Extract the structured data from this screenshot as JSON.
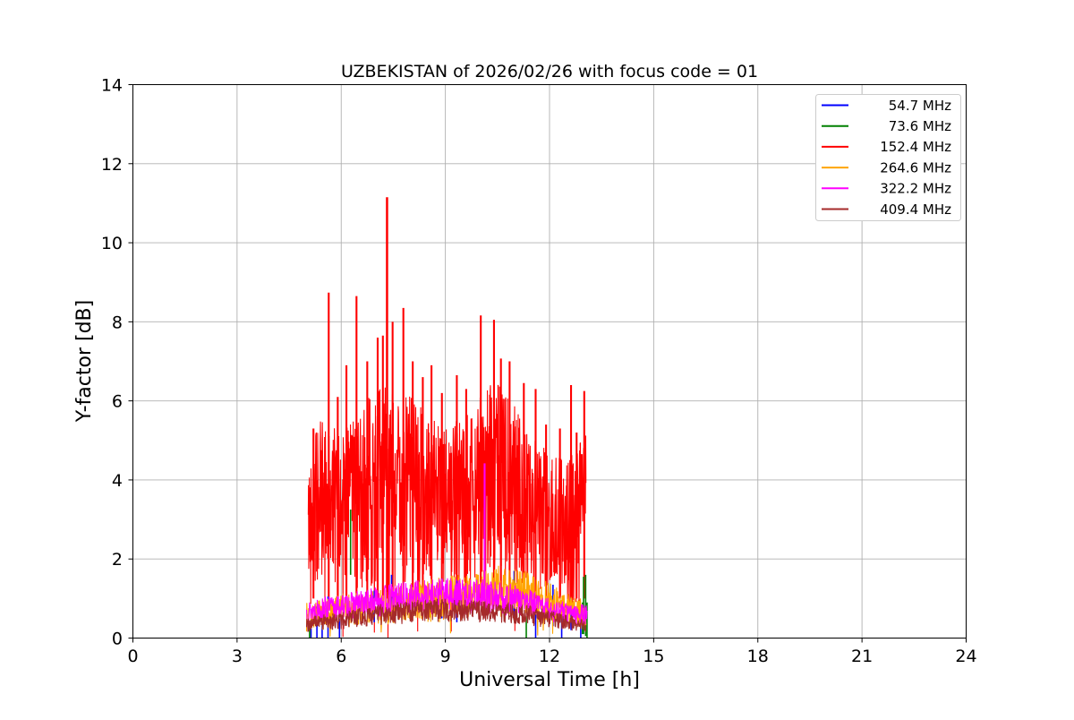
{
  "chart_data": {
    "type": "line",
    "title": "UZBEKISTAN of 2026/02/26 with focus code = 01",
    "xlabel": "Universal Time [h]",
    "ylabel": "Y-factor [dB]",
    "xlim": [
      0,
      24
    ],
    "ylim": [
      0,
      14
    ],
    "xticks": [
      0,
      3,
      6,
      9,
      12,
      15,
      18,
      21,
      24
    ],
    "yticks": [
      0,
      2,
      4,
      6,
      8,
      10,
      12,
      14
    ],
    "grid": true,
    "grid_color": "#b0b0b0",
    "frame_color": "#000000",
    "legend": {
      "position": "upper right"
    },
    "data_time_range_h": [
      5.05,
      13.08
    ],
    "render_order": [
      2,
      0,
      1,
      3,
      4,
      5
    ],
    "series": [
      {
        "name": "54.7 MHz",
        "color": "#0000ff",
        "style": "spikes",
        "spikes": [
          [
            5.13,
            0.45,
            0
          ],
          [
            5.3,
            0.8,
            0
          ],
          [
            5.45,
            0.35,
            0
          ],
          [
            5.62,
            1.05,
            0
          ],
          [
            5.95,
            0.5,
            0
          ],
          [
            6.95,
            1.2,
            0.4
          ],
          [
            7.45,
            1.6,
            0.6
          ],
          [
            8.9,
            1.5,
            0.5
          ],
          [
            9.33,
            1.45,
            0.4
          ],
          [
            10.98,
            1.7,
            0.5
          ],
          [
            11.6,
            0.6,
            0
          ],
          [
            12.1,
            1.35,
            0.3
          ],
          [
            12.35,
            0.6,
            0
          ],
          [
            12.62,
            1.0,
            0.2
          ],
          [
            12.9,
            0.5,
            0
          ]
        ]
      },
      {
        "name": "73.6 MHz",
        "color": "#008000",
        "style": "spikes",
        "spikes": [
          [
            5.09,
            0.4,
            0
          ],
          [
            6.27,
            3.25,
            1.6
          ],
          [
            11.33,
            0.55,
            0
          ],
          [
            12.95,
            0.9,
            0.1
          ],
          [
            12.98,
            1.55,
            0.1
          ],
          [
            13.04,
            1.6,
            0.05
          ],
          [
            13.08,
            0.9,
            0
          ]
        ]
      },
      {
        "name": "152.4 MHz",
        "color": "#ff0000",
        "style": "noise-band",
        "seed": 42,
        "dt": 0.008,
        "bias": 0.75,
        "drop_prob": 0.005,
        "time_range": [
          5.05,
          13.05
        ],
        "envelope": [
          [
            5.05,
            0.8,
            4.2
          ],
          [
            5.2,
            0.8,
            5.3
          ],
          [
            5.5,
            0.8,
            5.6
          ],
          [
            6.0,
            0.8,
            5.2
          ],
          [
            6.5,
            0.9,
            5.8
          ],
          [
            7.0,
            0.9,
            6.3
          ],
          [
            7.5,
            1.0,
            6.4
          ],
          [
            8.0,
            1.0,
            6.1
          ],
          [
            8.5,
            1.0,
            5.7
          ],
          [
            9.0,
            1.0,
            5.3
          ],
          [
            9.5,
            1.0,
            5.6
          ],
          [
            10.0,
            1.1,
            6.1
          ],
          [
            10.5,
            1.1,
            6.6
          ],
          [
            11.0,
            1.0,
            5.9
          ],
          [
            11.5,
            0.9,
            5.1
          ],
          [
            12.0,
            0.8,
            4.7
          ],
          [
            12.5,
            0.8,
            4.5
          ],
          [
            13.05,
            0.8,
            5.2
          ]
        ],
        "peaks": [
          [
            5.2,
            5.3
          ],
          [
            5.64,
            8.74
          ],
          [
            5.9,
            6.1
          ],
          [
            6.15,
            6.9
          ],
          [
            6.44,
            8.65
          ],
          [
            6.75,
            7.0
          ],
          [
            7.05,
            7.6
          ],
          [
            7.2,
            7.65
          ],
          [
            7.32,
            11.15
          ],
          [
            7.48,
            8.0
          ],
          [
            7.79,
            8.35
          ],
          [
            8.06,
            7.0
          ],
          [
            8.35,
            6.6
          ],
          [
            8.6,
            6.9
          ],
          [
            8.9,
            6.2
          ],
          [
            9.33,
            6.65
          ],
          [
            9.6,
            6.3
          ],
          [
            10.02,
            8.16
          ],
          [
            10.4,
            8.05
          ],
          [
            10.6,
            7.07
          ],
          [
            10.85,
            7.0
          ],
          [
            11.26,
            6.45
          ],
          [
            11.6,
            6.3
          ],
          [
            11.9,
            5.4
          ],
          [
            12.3,
            5.3
          ],
          [
            12.62,
            6.4
          ],
          [
            12.78,
            5.2
          ],
          [
            13.0,
            6.25
          ]
        ],
        "peak_base": 1.0
      },
      {
        "name": "264.6 MHz",
        "color": "#ffa500",
        "style": "noise-band",
        "seed": 7,
        "dt": 0.01,
        "bias": 0.85,
        "drop_prob": 0.004,
        "time_range": [
          5.0,
          13.05
        ],
        "envelope": [
          [
            5.0,
            0.15,
            0.9
          ],
          [
            5.5,
            0.2,
            1.0
          ],
          [
            6.0,
            0.25,
            1.1
          ],
          [
            6.5,
            0.3,
            1.15
          ],
          [
            7.0,
            0.3,
            1.25
          ],
          [
            7.5,
            0.35,
            1.3
          ],
          [
            8.0,
            0.35,
            1.45
          ],
          [
            8.5,
            0.4,
            1.5
          ],
          [
            9.0,
            0.4,
            1.55
          ],
          [
            9.5,
            0.45,
            1.65
          ],
          [
            10.0,
            0.45,
            1.7
          ],
          [
            10.5,
            0.5,
            1.85
          ],
          [
            11.0,
            0.5,
            1.8
          ],
          [
            11.5,
            0.45,
            1.65
          ],
          [
            12.0,
            0.35,
            1.4
          ],
          [
            12.5,
            0.3,
            1.15
          ],
          [
            13.05,
            0.25,
            0.95
          ]
        ],
        "peaks": [],
        "peak_base": 0.5
      },
      {
        "name": "322.2 MHz",
        "color": "#ff00ff",
        "style": "noise-band",
        "seed": 13,
        "dt": 0.01,
        "bias": 0.85,
        "drop_prob": 0,
        "time_range": [
          5.0,
          13.08
        ],
        "envelope": [
          [
            5.0,
            0.35,
            0.95
          ],
          [
            5.5,
            0.4,
            1.05
          ],
          [
            6.0,
            0.45,
            1.1
          ],
          [
            6.5,
            0.5,
            1.2
          ],
          [
            7.0,
            0.5,
            1.3
          ],
          [
            7.5,
            0.55,
            1.4
          ],
          [
            8.0,
            0.55,
            1.45
          ],
          [
            8.5,
            0.6,
            1.5
          ],
          [
            9.0,
            0.6,
            1.55
          ],
          [
            9.5,
            0.6,
            1.5
          ],
          [
            10.0,
            0.6,
            1.5
          ],
          [
            10.5,
            0.55,
            1.45
          ],
          [
            11.0,
            0.55,
            1.35
          ],
          [
            11.5,
            0.5,
            1.2
          ],
          [
            12.0,
            0.4,
            1.0
          ],
          [
            12.5,
            0.35,
            0.9
          ],
          [
            13.08,
            0.3,
            0.85
          ]
        ],
        "peaks": [
          [
            10.13,
            4.42
          ]
        ],
        "peak_base": 0.7
      },
      {
        "name": "409.4 MHz",
        "color": "#a52a2a",
        "style": "noise-band",
        "seed": 99,
        "dt": 0.01,
        "bias": 0.85,
        "drop_prob": 0,
        "time_range": [
          5.0,
          13.05
        ],
        "envelope": [
          [
            5.0,
            0.15,
            0.55
          ],
          [
            5.5,
            0.2,
            0.6
          ],
          [
            6.0,
            0.2,
            0.65
          ],
          [
            6.5,
            0.25,
            0.75
          ],
          [
            7.0,
            0.3,
            0.85
          ],
          [
            7.5,
            0.35,
            0.9
          ],
          [
            8.0,
            0.35,
            0.95
          ],
          [
            8.5,
            0.4,
            1.0
          ],
          [
            9.0,
            0.4,
            1.0
          ],
          [
            9.5,
            0.4,
            0.98
          ],
          [
            10.0,
            0.4,
            0.95
          ],
          [
            10.5,
            0.38,
            0.92
          ],
          [
            11.0,
            0.35,
            0.88
          ],
          [
            11.5,
            0.3,
            0.8
          ],
          [
            12.0,
            0.25,
            0.7
          ],
          [
            12.5,
            0.2,
            0.6
          ],
          [
            13.05,
            0.12,
            0.5
          ]
        ],
        "peaks": [],
        "peak_base": 0.3
      }
    ]
  }
}
